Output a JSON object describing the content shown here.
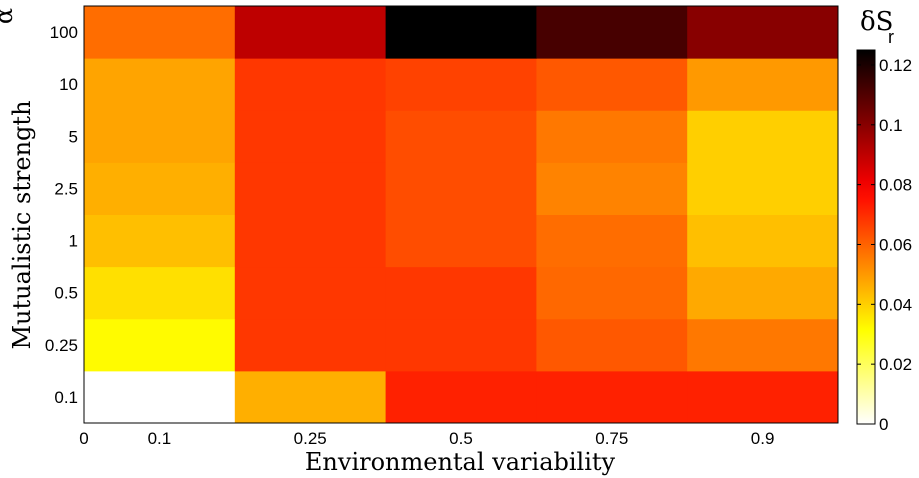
{
  "chart_data": {
    "type": "heatmap",
    "title": "",
    "xlabel": "Environmental variability",
    "ylabel": "Mutualistic strength",
    "ylabel_symbol": "α",
    "x_categories": [
      "0.1",
      "0.25",
      "0.5",
      "0.75",
      "0.9"
    ],
    "x_extra_tick": "0",
    "y_categories": [
      "0.1",
      "0.25",
      "0.5",
      "1",
      "2.5",
      "5",
      "10",
      "100"
    ],
    "values": [
      [
        0.0,
        0.046,
        0.072,
        0.072,
        0.072
      ],
      [
        0.032,
        0.068,
        0.068,
        0.062,
        0.056
      ],
      [
        0.037,
        0.068,
        0.068,
        0.059,
        0.047
      ],
      [
        0.043,
        0.068,
        0.064,
        0.058,
        0.043
      ],
      [
        0.046,
        0.068,
        0.064,
        0.054,
        0.04
      ],
      [
        0.048,
        0.068,
        0.064,
        0.056,
        0.04
      ],
      [
        0.048,
        0.068,
        0.066,
        0.062,
        0.05
      ],
      [
        0.058,
        0.09,
        0.125,
        0.112,
        0.1
      ]
    ],
    "colorbar": {
      "label": "δS",
      "label_subscript": "r",
      "min": 0,
      "max": 0.125,
      "ticks": [
        "0",
        "0.02",
        "0.04",
        "0.06",
        "0.08",
        "0.1",
        "0.12"
      ],
      "colormap": "hot-reversed"
    },
    "grid": false,
    "legend": "colorbar-right"
  }
}
